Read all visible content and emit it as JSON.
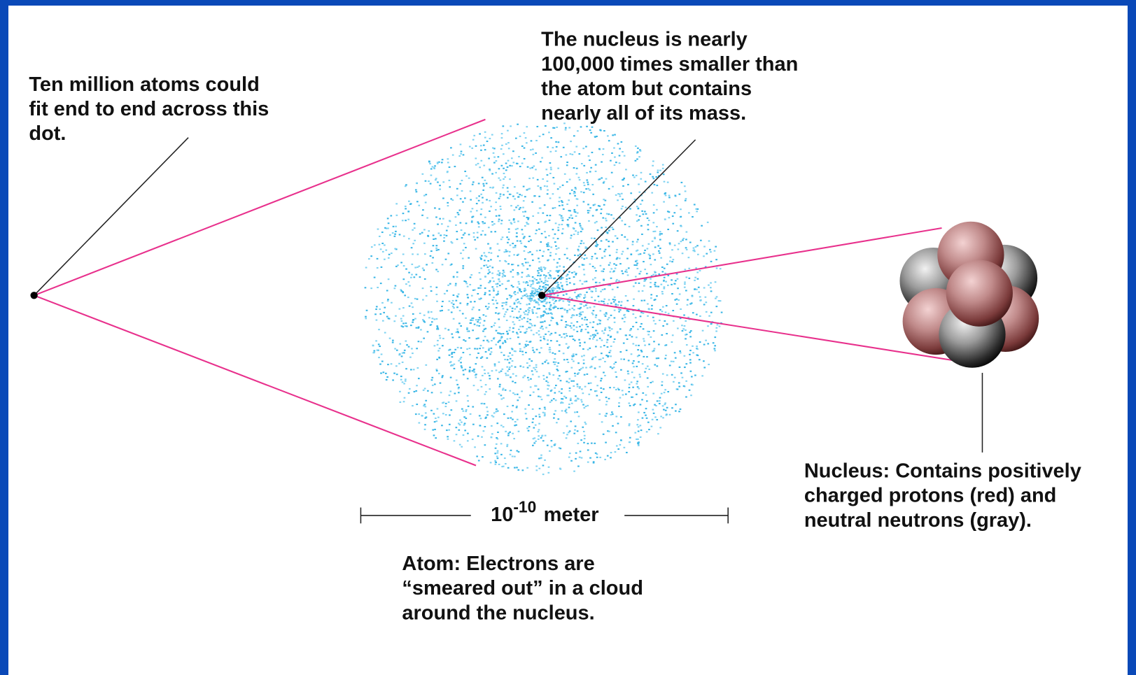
{
  "annotations": {
    "dot": {
      "lines": [
        "Ten million atoms could",
        "fit end to end across this",
        "dot."
      ]
    },
    "nucleus_size": {
      "lines": [
        "The nucleus is nearly",
        "100,000 times smaller than",
        "the atom but contains",
        "nearly all of its mass."
      ]
    },
    "atom": {
      "lines": [
        "Atom: Electrons are",
        "“smeared out” in a cloud",
        "around the nucleus."
      ]
    },
    "nucleus": {
      "lines": [
        "Nucleus: Contains positively",
        "charged protons (red) and",
        "neutral neutrons (gray)."
      ]
    }
  },
  "scale": {
    "base": "10",
    "exponent": "-10",
    "unit": "meter"
  }
}
